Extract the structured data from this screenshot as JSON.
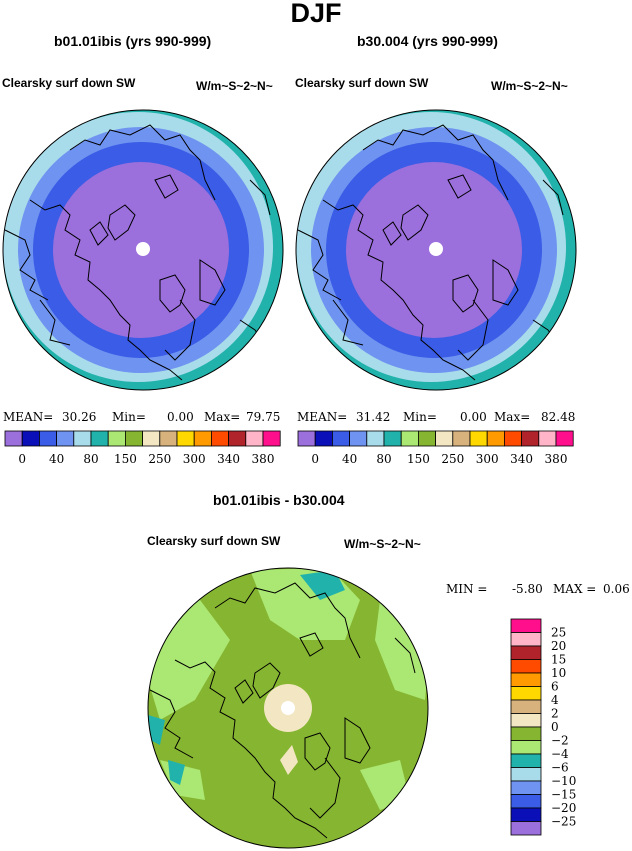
{
  "title": "DJF",
  "panels": [
    {
      "case": "b01.01ibis (yrs 990-999)",
      "variable": "Clearsky surf down SW",
      "units": "W/m~S~2~N~",
      "stats": {
        "mean_label": "MEAN=",
        "mean": "30.26",
        "min_label": "Min=",
        "min": "0.00",
        "max_label": "Max=",
        "max": "79.75"
      }
    },
    {
      "case": "b30.004 (yrs 990-999)",
      "variable": "Clearsky surf down SW",
      "units": "W/m~S~2~N~",
      "stats": {
        "mean_label": "MEAN=",
        "mean": "31.42",
        "min_label": "Min=",
        "min": "0.00",
        "max_label": "Max=",
        "max": "82.48"
      }
    },
    {
      "case": "b01.01ibis - b30.004",
      "variable": "Clearsky surf down SW",
      "units": "W/m~S~2~N~",
      "stats": {
        "min_label": "MIN =",
        "min": "-5.80",
        "max_label": "MAX =",
        "max": "0.06"
      }
    }
  ],
  "chart_data": [
    {
      "type": "heatmap",
      "projection": "north-polar-stereographic",
      "colorbar": {
        "orientation": "horizontal",
        "tick_labels": [
          "0",
          "40",
          "80",
          "150",
          "250",
          "300",
          "340",
          "380"
        ],
        "colors": [
          "#9b6fdc",
          "#0a0fb8",
          "#3a5ce6",
          "#6f93f0",
          "#a9dcea",
          "#21b3ab",
          "#abe873",
          "#86b531",
          "#f3e6c3",
          "#d7b27c",
          "#ffd800",
          "#ff9a00",
          "#ff4b00",
          "#b0232b",
          "#ffb4c8",
          "#ff0f8c"
        ]
      },
      "bands": [
        {
          "level": "0",
          "color": "#9b6fdc"
        },
        {
          "level": "20",
          "color": "#3a5ce6"
        },
        {
          "level": "40",
          "color": "#6f93f0"
        },
        {
          "level": "60",
          "color": "#a9dcea"
        },
        {
          "level": "80",
          "color": "#21b3ab"
        }
      ]
    },
    {
      "type": "heatmap",
      "projection": "north-polar-stereographic",
      "colorbar": {
        "orientation": "horizontal",
        "tick_labels": [
          "0",
          "40",
          "80",
          "150",
          "250",
          "300",
          "340",
          "380"
        ],
        "colors": [
          "#9b6fdc",
          "#0a0fb8",
          "#3a5ce6",
          "#6f93f0",
          "#a9dcea",
          "#21b3ab",
          "#abe873",
          "#86b531",
          "#f3e6c3",
          "#d7b27c",
          "#ffd800",
          "#ff9a00",
          "#ff4b00",
          "#b0232b",
          "#ffb4c8",
          "#ff0f8c"
        ]
      },
      "bands": [
        {
          "level": "0",
          "color": "#9b6fdc"
        },
        {
          "level": "20",
          "color": "#3a5ce6"
        },
        {
          "level": "40",
          "color": "#6f93f0"
        },
        {
          "level": "60",
          "color": "#a9dcea"
        },
        {
          "level": "80",
          "color": "#21b3ab"
        }
      ]
    },
    {
      "type": "heatmap",
      "projection": "north-polar-stereographic",
      "colorbar": {
        "orientation": "vertical",
        "tick_labels": [
          "25",
          "20",
          "15",
          "10",
          "6",
          "4",
          "2",
          "0",
          "−2",
          "−4",
          "−6",
          "−10",
          "−15",
          "−20",
          "−25"
        ],
        "colors": [
          "#ff0f8c",
          "#ffb4c8",
          "#b0232b",
          "#ff4b00",
          "#ff9a00",
          "#ffd800",
          "#d7b27c",
          "#f3e6c3",
          "#86b531",
          "#abe873",
          "#21b3ab",
          "#a9dcea",
          "#6f93f0",
          "#3a5ce6",
          "#0a0fb8",
          "#9b6fdc"
        ]
      },
      "dominant_color": "#86b531",
      "secondary_colors": [
        "#abe873",
        "#f3e6c3",
        "#21b3ab"
      ]
    }
  ]
}
